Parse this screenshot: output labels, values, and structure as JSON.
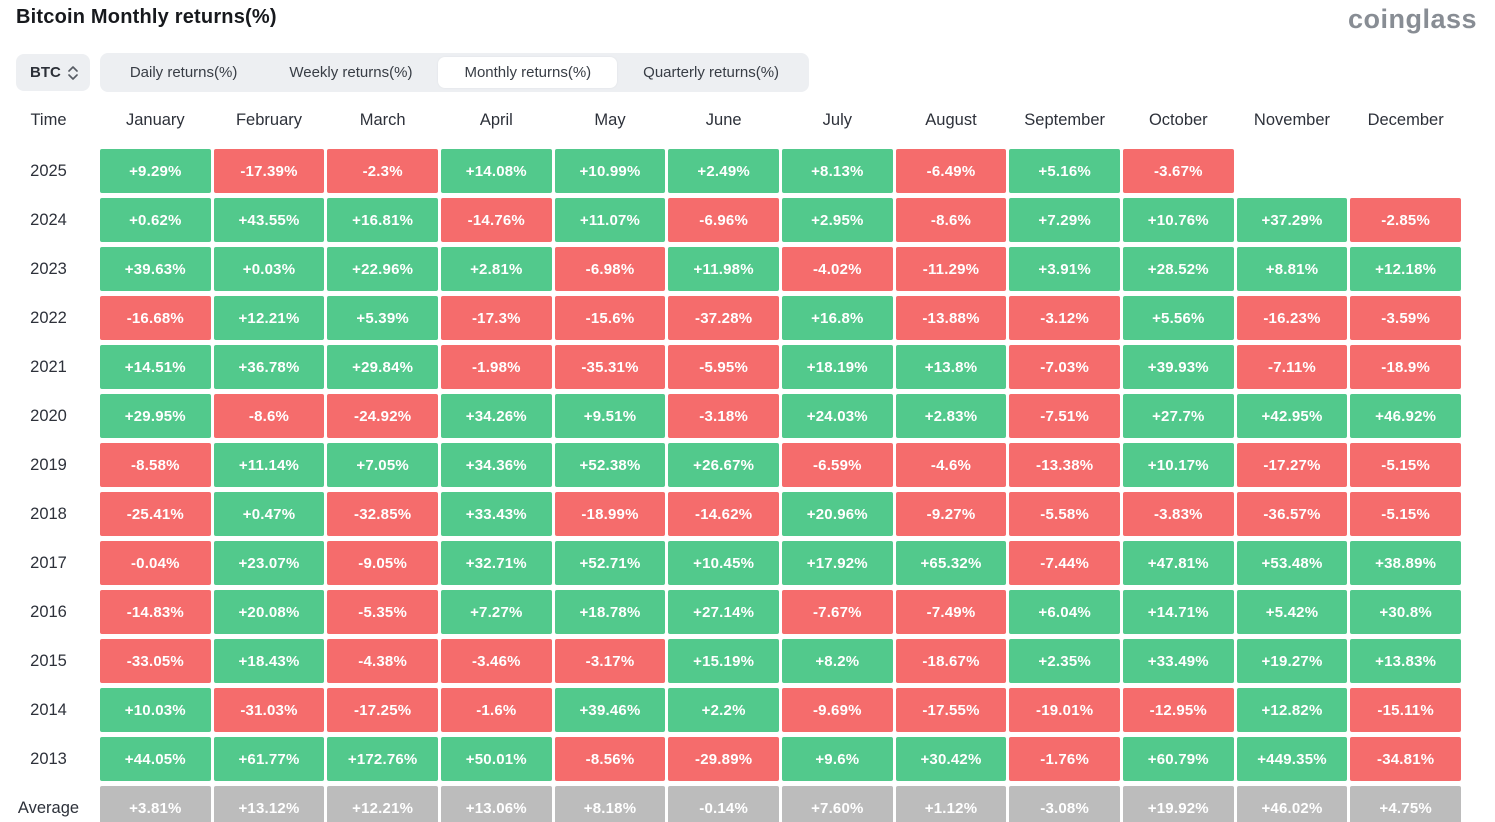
{
  "page": {
    "title": "Bitcoin Monthly returns(%)",
    "logo": "coinglass"
  },
  "controls": {
    "symbol_selector": {
      "value": "BTC",
      "icon": "updown-chevron-icon"
    },
    "tabs": [
      {
        "label": "Daily returns(%)",
        "active": false
      },
      {
        "label": "Weekly returns(%)",
        "active": false
      },
      {
        "label": "Monthly returns(%)",
        "active": true
      },
      {
        "label": "Quarterly returns(%)",
        "active": false
      }
    ]
  },
  "colors": {
    "positive": "#52c98c",
    "negative": "#f56c6c",
    "average_bg": "#bcbcbc",
    "tab_bg": "#edeff2",
    "active_tab_bg": "#ffffff"
  },
  "chart_data": {
    "type": "heatmap",
    "title": "Bitcoin Monthly returns(%)",
    "columns": [
      "Time",
      "January",
      "February",
      "March",
      "April",
      "May",
      "June",
      "July",
      "August",
      "September",
      "October",
      "November",
      "December"
    ],
    "rows": [
      {
        "label": "2025",
        "values": [
          "+9.29%",
          "-17.39%",
          "-2.3%",
          "+14.08%",
          "+10.99%",
          "+2.49%",
          "+8.13%",
          "-6.49%",
          "+5.16%",
          "-3.67%",
          "",
          ""
        ]
      },
      {
        "label": "2024",
        "values": [
          "+0.62%",
          "+43.55%",
          "+16.81%",
          "-14.76%",
          "+11.07%",
          "-6.96%",
          "+2.95%",
          "-8.6%",
          "+7.29%",
          "+10.76%",
          "+37.29%",
          "-2.85%"
        ]
      },
      {
        "label": "2023",
        "values": [
          "+39.63%",
          "+0.03%",
          "+22.96%",
          "+2.81%",
          "-6.98%",
          "+11.98%",
          "-4.02%",
          "-11.29%",
          "+3.91%",
          "+28.52%",
          "+8.81%",
          "+12.18%"
        ]
      },
      {
        "label": "2022",
        "values": [
          "-16.68%",
          "+12.21%",
          "+5.39%",
          "-17.3%",
          "-15.6%",
          "-37.28%",
          "+16.8%",
          "-13.88%",
          "-3.12%",
          "+5.56%",
          "-16.23%",
          "-3.59%"
        ]
      },
      {
        "label": "2021",
        "values": [
          "+14.51%",
          "+36.78%",
          "+29.84%",
          "-1.98%",
          "-35.31%",
          "-5.95%",
          "+18.19%",
          "+13.8%",
          "-7.03%",
          "+39.93%",
          "-7.11%",
          "-18.9%"
        ]
      },
      {
        "label": "2020",
        "values": [
          "+29.95%",
          "-8.6%",
          "-24.92%",
          "+34.26%",
          "+9.51%",
          "-3.18%",
          "+24.03%",
          "+2.83%",
          "-7.51%",
          "+27.7%",
          "+42.95%",
          "+46.92%"
        ]
      },
      {
        "label": "2019",
        "values": [
          "-8.58%",
          "+11.14%",
          "+7.05%",
          "+34.36%",
          "+52.38%",
          "+26.67%",
          "-6.59%",
          "-4.6%",
          "-13.38%",
          "+10.17%",
          "-17.27%",
          "-5.15%"
        ]
      },
      {
        "label": "2018",
        "values": [
          "-25.41%",
          "+0.47%",
          "-32.85%",
          "+33.43%",
          "-18.99%",
          "-14.62%",
          "+20.96%",
          "-9.27%",
          "-5.58%",
          "-3.83%",
          "-36.57%",
          "-5.15%"
        ]
      },
      {
        "label": "2017",
        "values": [
          "-0.04%",
          "+23.07%",
          "-9.05%",
          "+32.71%",
          "+52.71%",
          "+10.45%",
          "+17.92%",
          "+65.32%",
          "-7.44%",
          "+47.81%",
          "+53.48%",
          "+38.89%"
        ]
      },
      {
        "label": "2016",
        "values": [
          "-14.83%",
          "+20.08%",
          "-5.35%",
          "+7.27%",
          "+18.78%",
          "+27.14%",
          "-7.67%",
          "-7.49%",
          "+6.04%",
          "+14.71%",
          "+5.42%",
          "+30.8%"
        ]
      },
      {
        "label": "2015",
        "values": [
          "-33.05%",
          "+18.43%",
          "-4.38%",
          "-3.46%",
          "-3.17%",
          "+15.19%",
          "+8.2%",
          "-18.67%",
          "+2.35%",
          "+33.49%",
          "+19.27%",
          "+13.83%"
        ]
      },
      {
        "label": "2014",
        "values": [
          "+10.03%",
          "-31.03%",
          "-17.25%",
          "-1.6%",
          "+39.46%",
          "+2.2%",
          "-9.69%",
          "-17.55%",
          "-19.01%",
          "-12.95%",
          "+12.82%",
          "-15.11%"
        ]
      },
      {
        "label": "2013",
        "values": [
          "+44.05%",
          "+61.77%",
          "+172.76%",
          "+50.01%",
          "-8.56%",
          "-29.89%",
          "+9.6%",
          "+30.42%",
          "-1.76%",
          "+60.79%",
          "+449.35%",
          "-34.81%"
        ]
      },
      {
        "label": "Average",
        "values": [
          "+3.81%",
          "+13.12%",
          "+12.21%",
          "+13.06%",
          "+8.18%",
          "-0.14%",
          "+7.60%",
          "+1.12%",
          "-3.08%",
          "+19.92%",
          "+46.02%",
          "+4.75%"
        ]
      }
    ]
  }
}
